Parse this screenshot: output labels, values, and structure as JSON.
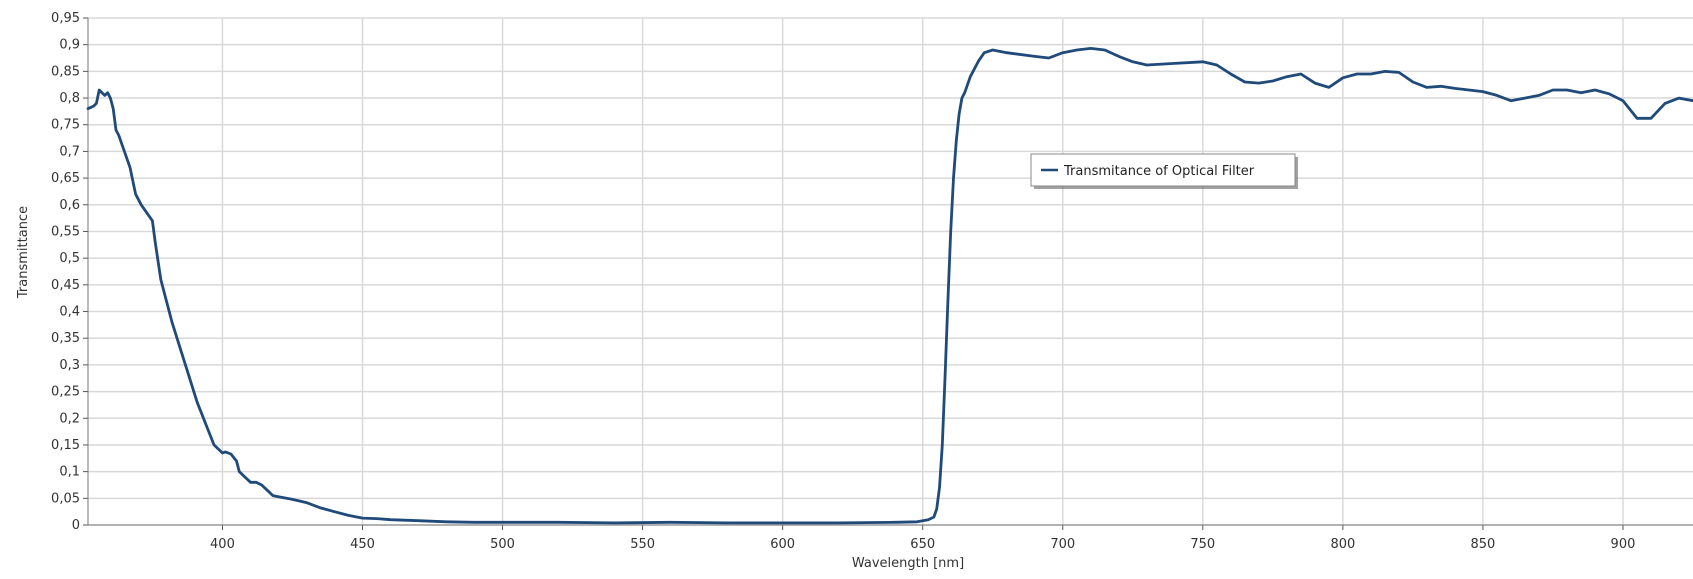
{
  "chart_data": {
    "type": "line",
    "title": "",
    "xlabel": "Wavelength [nm]",
    "ylabel": "Transmittance",
    "xlim": [
      352,
      925
    ],
    "ylim": [
      0,
      0.95
    ],
    "x_ticks": [
      400,
      450,
      500,
      550,
      600,
      650,
      700,
      750,
      800,
      850,
      900
    ],
    "x_tick_labels": [
      "400",
      "450",
      "500",
      "550",
      "600",
      "650",
      "700",
      "750",
      "800",
      "850",
      "900"
    ],
    "y_ticks": [
      0,
      0.05,
      0.1,
      0.15,
      0.2,
      0.25,
      0.3,
      0.35,
      0.4,
      0.45,
      0.5,
      0.55,
      0.6,
      0.65,
      0.7,
      0.75,
      0.8,
      0.85,
      0.9,
      0.95
    ],
    "y_tick_labels": [
      "0",
      "0,05",
      "0,1",
      "0,15",
      "0,2",
      "0,25",
      "0,3",
      "0,35",
      "0,4",
      "0,45",
      "0,5",
      "0,55",
      "0,6",
      "0,65",
      "0,7",
      "0,75",
      "0,8",
      "0,85",
      "0,9",
      "0,95"
    ],
    "grid": true,
    "legend_position": "upper-center-right",
    "series": [
      {
        "name": "Transmitance of Optical Filter",
        "color": "#1f4a7a",
        "x": [
          352,
          354,
          355,
          356,
          357,
          358,
          359,
          360,
          361,
          362,
          363,
          365,
          367,
          369,
          371,
          373,
          375,
          376,
          378,
          380,
          382,
          385,
          388,
          391,
          394,
          397,
          400,
          401,
          403,
          405,
          406,
          408,
          410,
          412,
          414,
          416,
          418,
          420,
          425,
          430,
          435,
          440,
          445,
          450,
          455,
          460,
          470,
          480,
          490,
          500,
          520,
          540,
          560,
          580,
          600,
          620,
          640,
          648,
          652,
          654,
          655,
          656,
          657,
          658,
          659,
          660,
          661,
          662,
          663,
          664,
          665,
          667,
          670,
          672,
          675,
          680,
          690,
          695,
          700,
          705,
          710,
          715,
          720,
          725,
          730,
          740,
          750,
          755,
          760,
          765,
          770,
          775,
          780,
          785,
          790,
          795,
          800,
          805,
          810,
          815,
          820,
          825,
          830,
          835,
          840,
          845,
          850,
          855,
          860,
          865,
          870,
          875,
          880,
          885,
          890,
          895,
          900,
          905,
          910,
          915,
          920,
          925
        ],
        "y": [
          0.78,
          0.785,
          0.79,
          0.815,
          0.81,
          0.805,
          0.81,
          0.8,
          0.78,
          0.74,
          0.73,
          0.7,
          0.67,
          0.62,
          0.6,
          0.585,
          0.57,
          0.53,
          0.46,
          0.42,
          0.38,
          0.33,
          0.28,
          0.23,
          0.19,
          0.15,
          0.135,
          0.137,
          0.133,
          0.12,
          0.1,
          0.09,
          0.08,
          0.08,
          0.075,
          0.065,
          0.055,
          0.053,
          0.048,
          0.042,
          0.032,
          0.025,
          0.018,
          0.013,
          0.012,
          0.01,
          0.008,
          0.006,
          0.005,
          0.005,
          0.005,
          0.004,
          0.005,
          0.004,
          0.004,
          0.004,
          0.005,
          0.006,
          0.01,
          0.015,
          0.03,
          0.07,
          0.15,
          0.28,
          0.42,
          0.55,
          0.65,
          0.72,
          0.77,
          0.8,
          0.81,
          0.84,
          0.87,
          0.885,
          0.89,
          0.885,
          0.878,
          0.875,
          0.885,
          0.89,
          0.893,
          0.89,
          0.878,
          0.868,
          0.862,
          0.865,
          0.868,
          0.862,
          0.845,
          0.83,
          0.828,
          0.832,
          0.84,
          0.845,
          0.828,
          0.82,
          0.838,
          0.845,
          0.845,
          0.85,
          0.848,
          0.83,
          0.82,
          0.822,
          0.818,
          0.815,
          0.812,
          0.805,
          0.795,
          0.8,
          0.805,
          0.815,
          0.815,
          0.81,
          0.815,
          0.808,
          0.795,
          0.762,
          0.762,
          0.79,
          0.8,
          0.795
        ]
      }
    ]
  }
}
